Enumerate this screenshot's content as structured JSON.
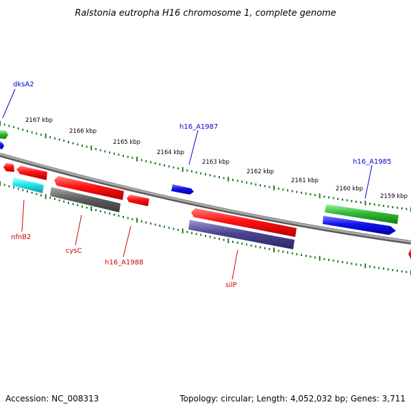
{
  "title": "Ralstonia eutropha H16 chromosome 1, complete genome",
  "footer": {
    "accession": "Accession: NC_008313",
    "summary": "Topology: circular; Length: 4,052,032 bp; Genes: 3,711"
  },
  "kbp_labels": [
    "2167 kbp",
    "2166 kbp",
    "2165 kbp",
    "2164 kbp",
    "2163 kbp",
    "2162 kbp",
    "2161 kbp",
    "2160 kbp",
    "2159 kbp"
  ],
  "gene_labels": {
    "dksA2": "dksA2",
    "h16_A1987": "h16_A1987",
    "h16_A1985": "h16_A1985",
    "nfnB2": "nfnB2",
    "cysC": "cysC",
    "h16_A1988": "h16_A1988",
    "silP": "silP"
  },
  "colors": {
    "backbone": "#8c8c8c",
    "ruler_ticks": "#1f7a1f",
    "forward_label": "#0000cc",
    "reverse_label": "#cc0000",
    "gene_red": "#ee1111",
    "gene_blue": "#1a1aee",
    "gene_green": "#33bb33",
    "gene_cyan": "#22e0e8",
    "gene_gray": "#666666",
    "gene_slate": "#4a4590"
  }
}
